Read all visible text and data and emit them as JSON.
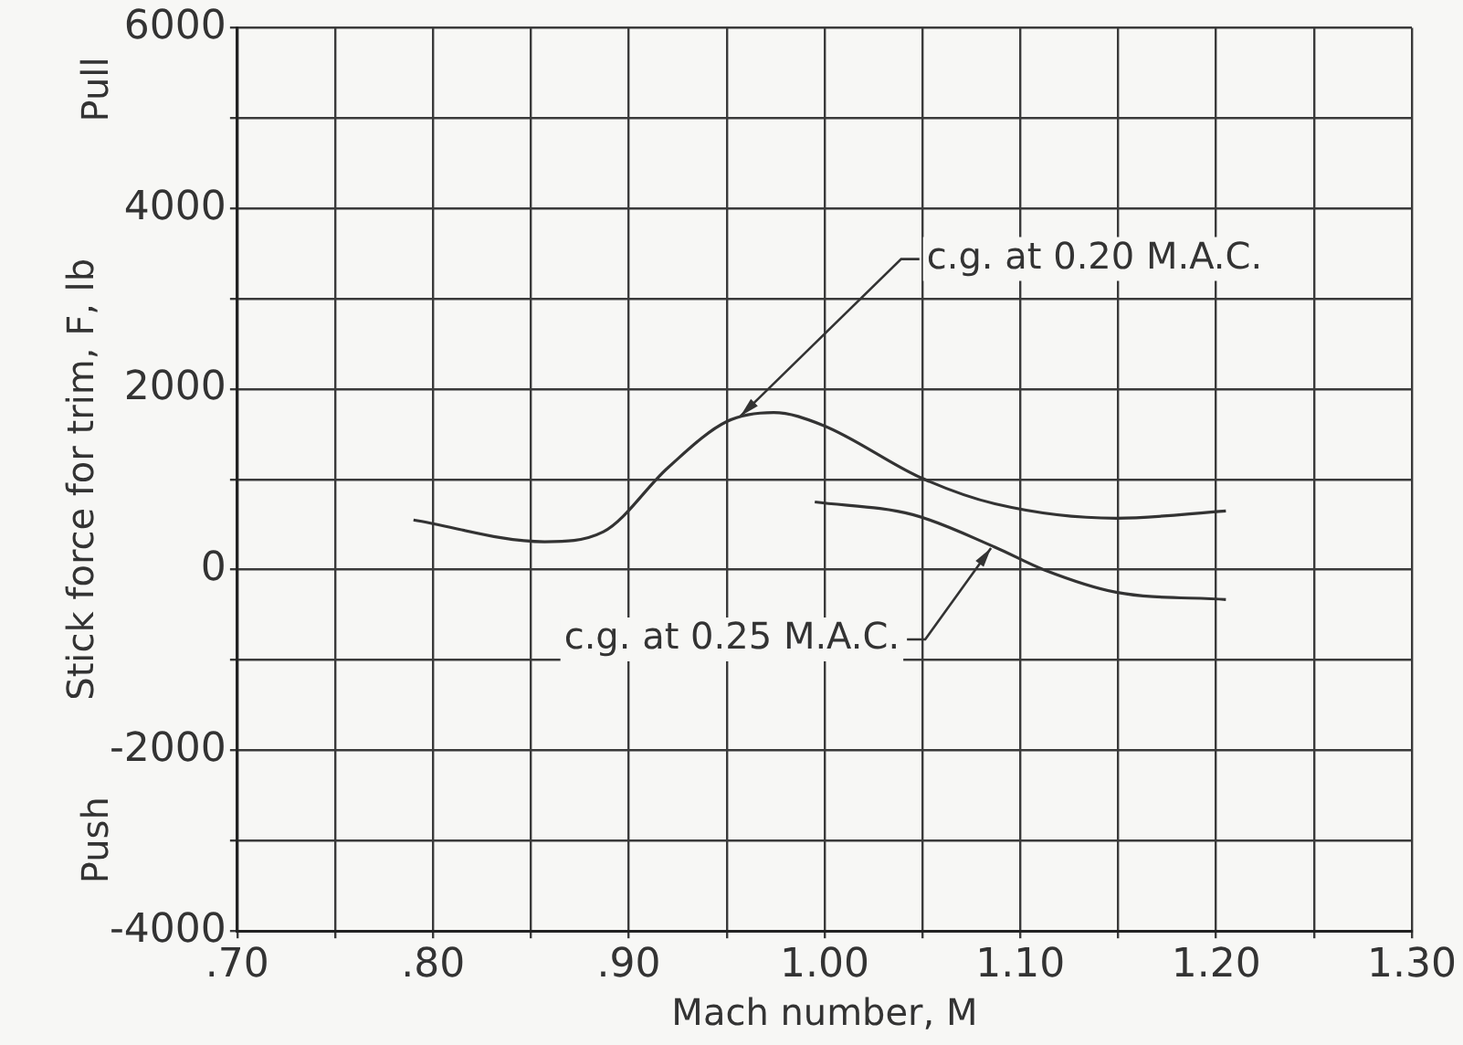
{
  "chart_data": {
    "type": "line",
    "xlabel": "Mach number, M",
    "ylabel": "Stick force for trim, F, lb",
    "xlim": [
      0.7,
      1.3
    ],
    "ylim": [
      -4000,
      6000
    ],
    "xticks": [
      {
        "value": 0.7,
        "label": ".70"
      },
      {
        "value": 0.75,
        "label": null
      },
      {
        "value": 0.8,
        "label": ".80"
      },
      {
        "value": 0.85,
        "label": null
      },
      {
        "value": 0.9,
        "label": ".90"
      },
      {
        "value": 0.95,
        "label": null
      },
      {
        "value": 1.0,
        "label": "1.00"
      },
      {
        "value": 1.05,
        "label": null
      },
      {
        "value": 1.1,
        "label": "1.10"
      },
      {
        "value": 1.15,
        "label": null
      },
      {
        "value": 1.2,
        "label": "1.20"
      },
      {
        "value": 1.25,
        "label": null
      },
      {
        "value": 1.3,
        "label": "1.30"
      }
    ],
    "yticks": [
      -4000,
      {
        "value": -3000,
        "label": null
      },
      -2000,
      {
        "value": -1000,
        "label": null
      },
      0,
      {
        "value": 1000,
        "label": null
      },
      2000,
      {
        "value": 3000,
        "label": null
      },
      4000,
      {
        "value": 5000,
        "label": null
      },
      6000
    ],
    "grid": true,
    "marker": "none",
    "line_style": "solid",
    "series": [
      {
        "color": "#333333",
        "x": [
          0.79,
          0.857,
          0.887,
          0.92,
          0.95,
          0.974,
          0.999,
          1.05,
          1.087,
          1.149,
          1.205
        ],
        "values": [
          550,
          310,
          420,
          1130,
          1640,
          1740,
          1600,
          1010,
          730,
          570,
          650
        ]
      },
      {
        "color": "#333333",
        "x": [
          0.995,
          1.045,
          1.087,
          1.112,
          1.149,
          1.205
        ],
        "values": [
          750,
          610,
          250,
          0,
          -250,
          -330
        ]
      }
    ],
    "annotations": [
      "Pull",
      "Push",
      {
        "text": "c.g. at 0.20 M.A.C.",
        "x": 0.957,
        "y": 1700
      },
      {
        "text": "c.g. at 0.25 M.A.C.",
        "x": 1.085,
        "y": 240
      }
    ]
  }
}
